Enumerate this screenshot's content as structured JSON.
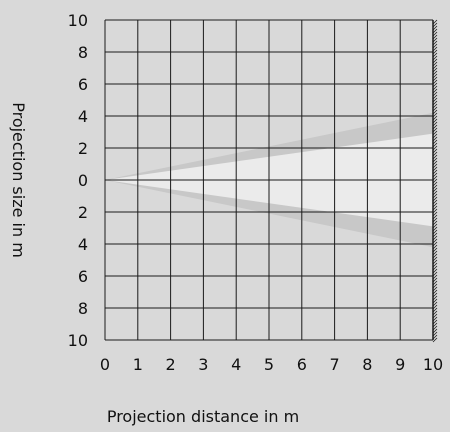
{
  "chart_data": {
    "type": "area",
    "xlabel": "Projection distance in m",
    "ylabel": "Projection size in m",
    "xlim": [
      0,
      10
    ],
    "ylim": [
      -10,
      10
    ],
    "x_ticks": [
      0,
      1,
      2,
      3,
      4,
      5,
      6,
      7,
      8,
      9,
      10
    ],
    "x_tick_labels": [
      "0",
      "1",
      "2",
      "3",
      "4",
      "5",
      "6",
      "7",
      "8",
      "9",
      "10"
    ],
    "y_ticks": [
      10,
      8,
      6,
      4,
      2,
      0,
      -2,
      -4,
      -6,
      -8,
      -10
    ],
    "y_tick_labels": [
      "10",
      "8",
      "6",
      "4",
      "2",
      "0",
      "2",
      "4",
      "6",
      "8",
      "10"
    ],
    "grid": true,
    "wall_at_x": 10,
    "beam": {
      "apex": [
        0,
        0
      ],
      "outer": {
        "x": 10,
        "top": 4.2,
        "bottom": -4.2
      },
      "inner": {
        "x": 10,
        "top": 2.9,
        "bottom": -2.9
      }
    },
    "colors": {
      "background": "#d9d9d9",
      "grid": "#1a1a1a",
      "beam_outer": "#c8c8c8",
      "beam_inner": "#ebebeb",
      "text": "#111111"
    }
  }
}
